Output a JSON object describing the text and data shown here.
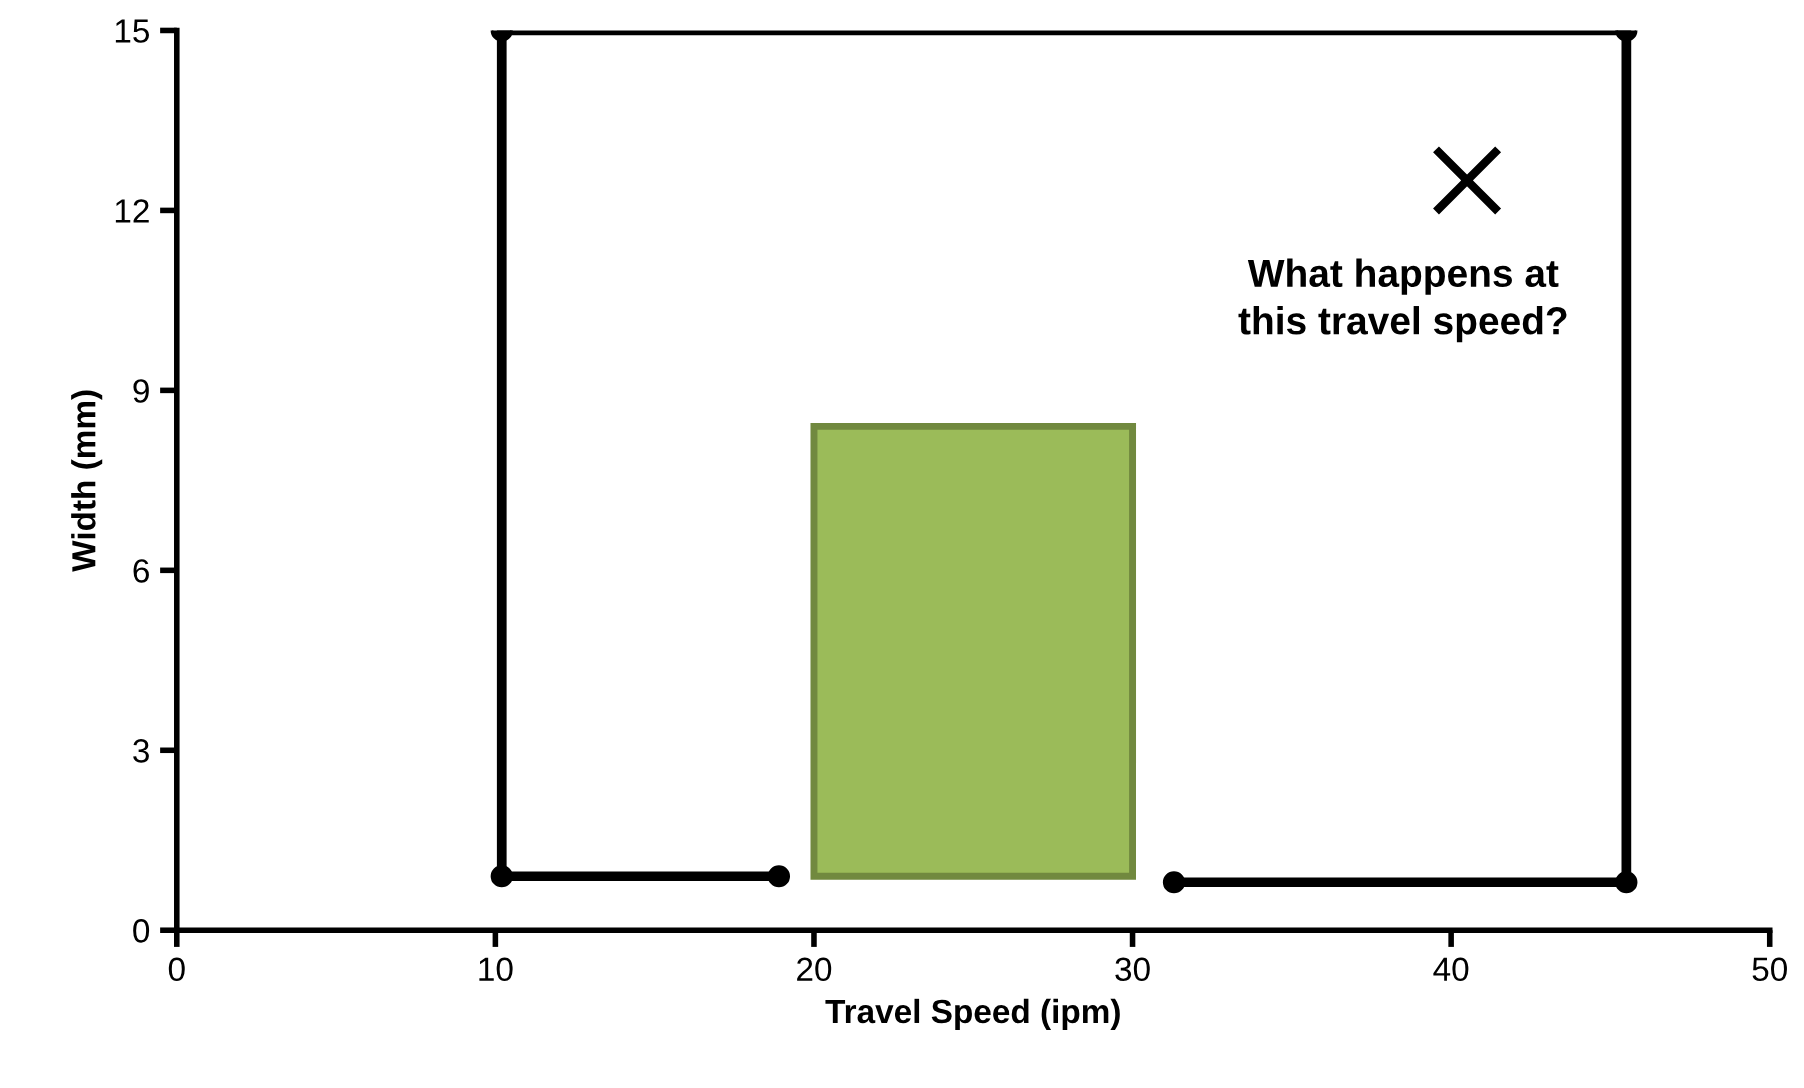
{
  "chart_data": {
    "type": "line",
    "xlabel": "Travel Speed (ipm)",
    "ylabel": "Width (mm)",
    "xlim": [
      0,
      50
    ],
    "xticks": [
      0,
      10,
      20,
      30,
      40,
      50
    ],
    "ylim": [
      0,
      15
    ],
    "yticks": [
      0,
      3,
      6,
      9,
      12,
      15
    ],
    "grid": false,
    "legend": false,
    "series": [
      {
        "type": "bar",
        "color": "#9bbb59",
        "x": [
          25
        ],
        "base": [
          0.9
        ],
        "values": [
          7.5
        ]
      },
      {
        "color": "#000000",
        "marker": "circle",
        "x": [
          18.9,
          10.2,
          10.2,
          45.5,
          45.5,
          31.3
        ],
        "values": [
          0.9,
          0.9,
          15,
          15,
          0.8,
          0.8
        ]
      },
      {
        "type": "scatter",
        "color": "#000000",
        "marker": "cross",
        "x": [
          40.5
        ],
        "values": [
          12.5
        ]
      }
    ],
    "annotations": [
      "What happens at\nthis travel speed?"
    ]
  }
}
